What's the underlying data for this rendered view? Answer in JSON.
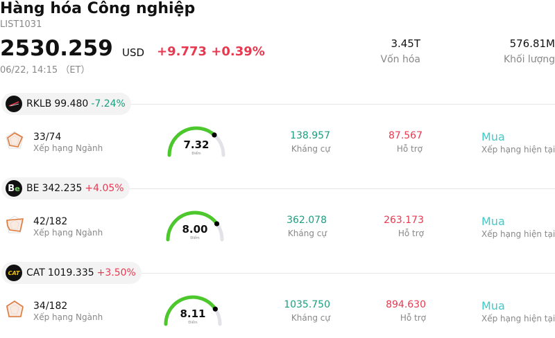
{
  "header": {
    "title": "Hàng hóa Công nghiệp",
    "code": "LIST1031",
    "price": "2530.259",
    "currency": "USD",
    "change": "+9.773 +0.39%",
    "timestamp": "06/22, 14:15 （ET）"
  },
  "stats": {
    "market_cap_value": "3.45T",
    "market_cap_label": "Vốn hóa",
    "volume_value": "576.81M",
    "volume_label": "Khối lượng"
  },
  "colors": {
    "down": "#1a9e7e",
    "up": "#e8384f",
    "rating": "#3fc9c9",
    "gauge_green": "#4cc82c",
    "radar_orange": "#e07a3c"
  },
  "rows": [
    {
      "logo_icon": "rklb-logo-icon",
      "symbol": "RKLB",
      "price": "99.480",
      "pct_change": "-7.24%",
      "rank": "33/74",
      "rank_label": "Xếp hạng Ngành",
      "score": "7.32",
      "score_fraction": 0.732,
      "score_label": "Điểm",
      "resistance": "138.957",
      "resistance_label": "Kháng cự",
      "support": "87.567",
      "support_label": "Hỗ trợ",
      "rating": "Mua",
      "rating_label": "Xếp hạng hiện tại"
    },
    {
      "logo_icon": "be-logo-icon",
      "logo_text": "B",
      "logo_text2": "e",
      "symbol": "BE",
      "price": "342.235",
      "pct_change": "+4.05%",
      "rank": "42/182",
      "rank_label": "Xếp hạng Ngành",
      "score": "8.00",
      "score_fraction": 0.8,
      "score_label": "Điểm",
      "resistance": "362.078",
      "resistance_label": "Kháng cự",
      "support": "263.173",
      "support_label": "Hỗ trợ",
      "rating": "Mua",
      "rating_label": "Xếp hạng hiện tại"
    },
    {
      "logo_icon": "cat-logo-icon",
      "logo_text": "CAT",
      "symbol": "CAT",
      "price": "1019.335",
      "pct_change": "+3.50%",
      "rank": "34/182",
      "rank_label": "Xếp hạng Ngành",
      "score": "8.11",
      "score_fraction": 0.811,
      "score_label": "Điểm",
      "resistance": "1035.750",
      "resistance_label": "Kháng cự",
      "support": "894.630",
      "support_label": "Hỗ trợ",
      "rating": "Mua",
      "rating_label": "Xếp hạng hiện tại"
    }
  ]
}
